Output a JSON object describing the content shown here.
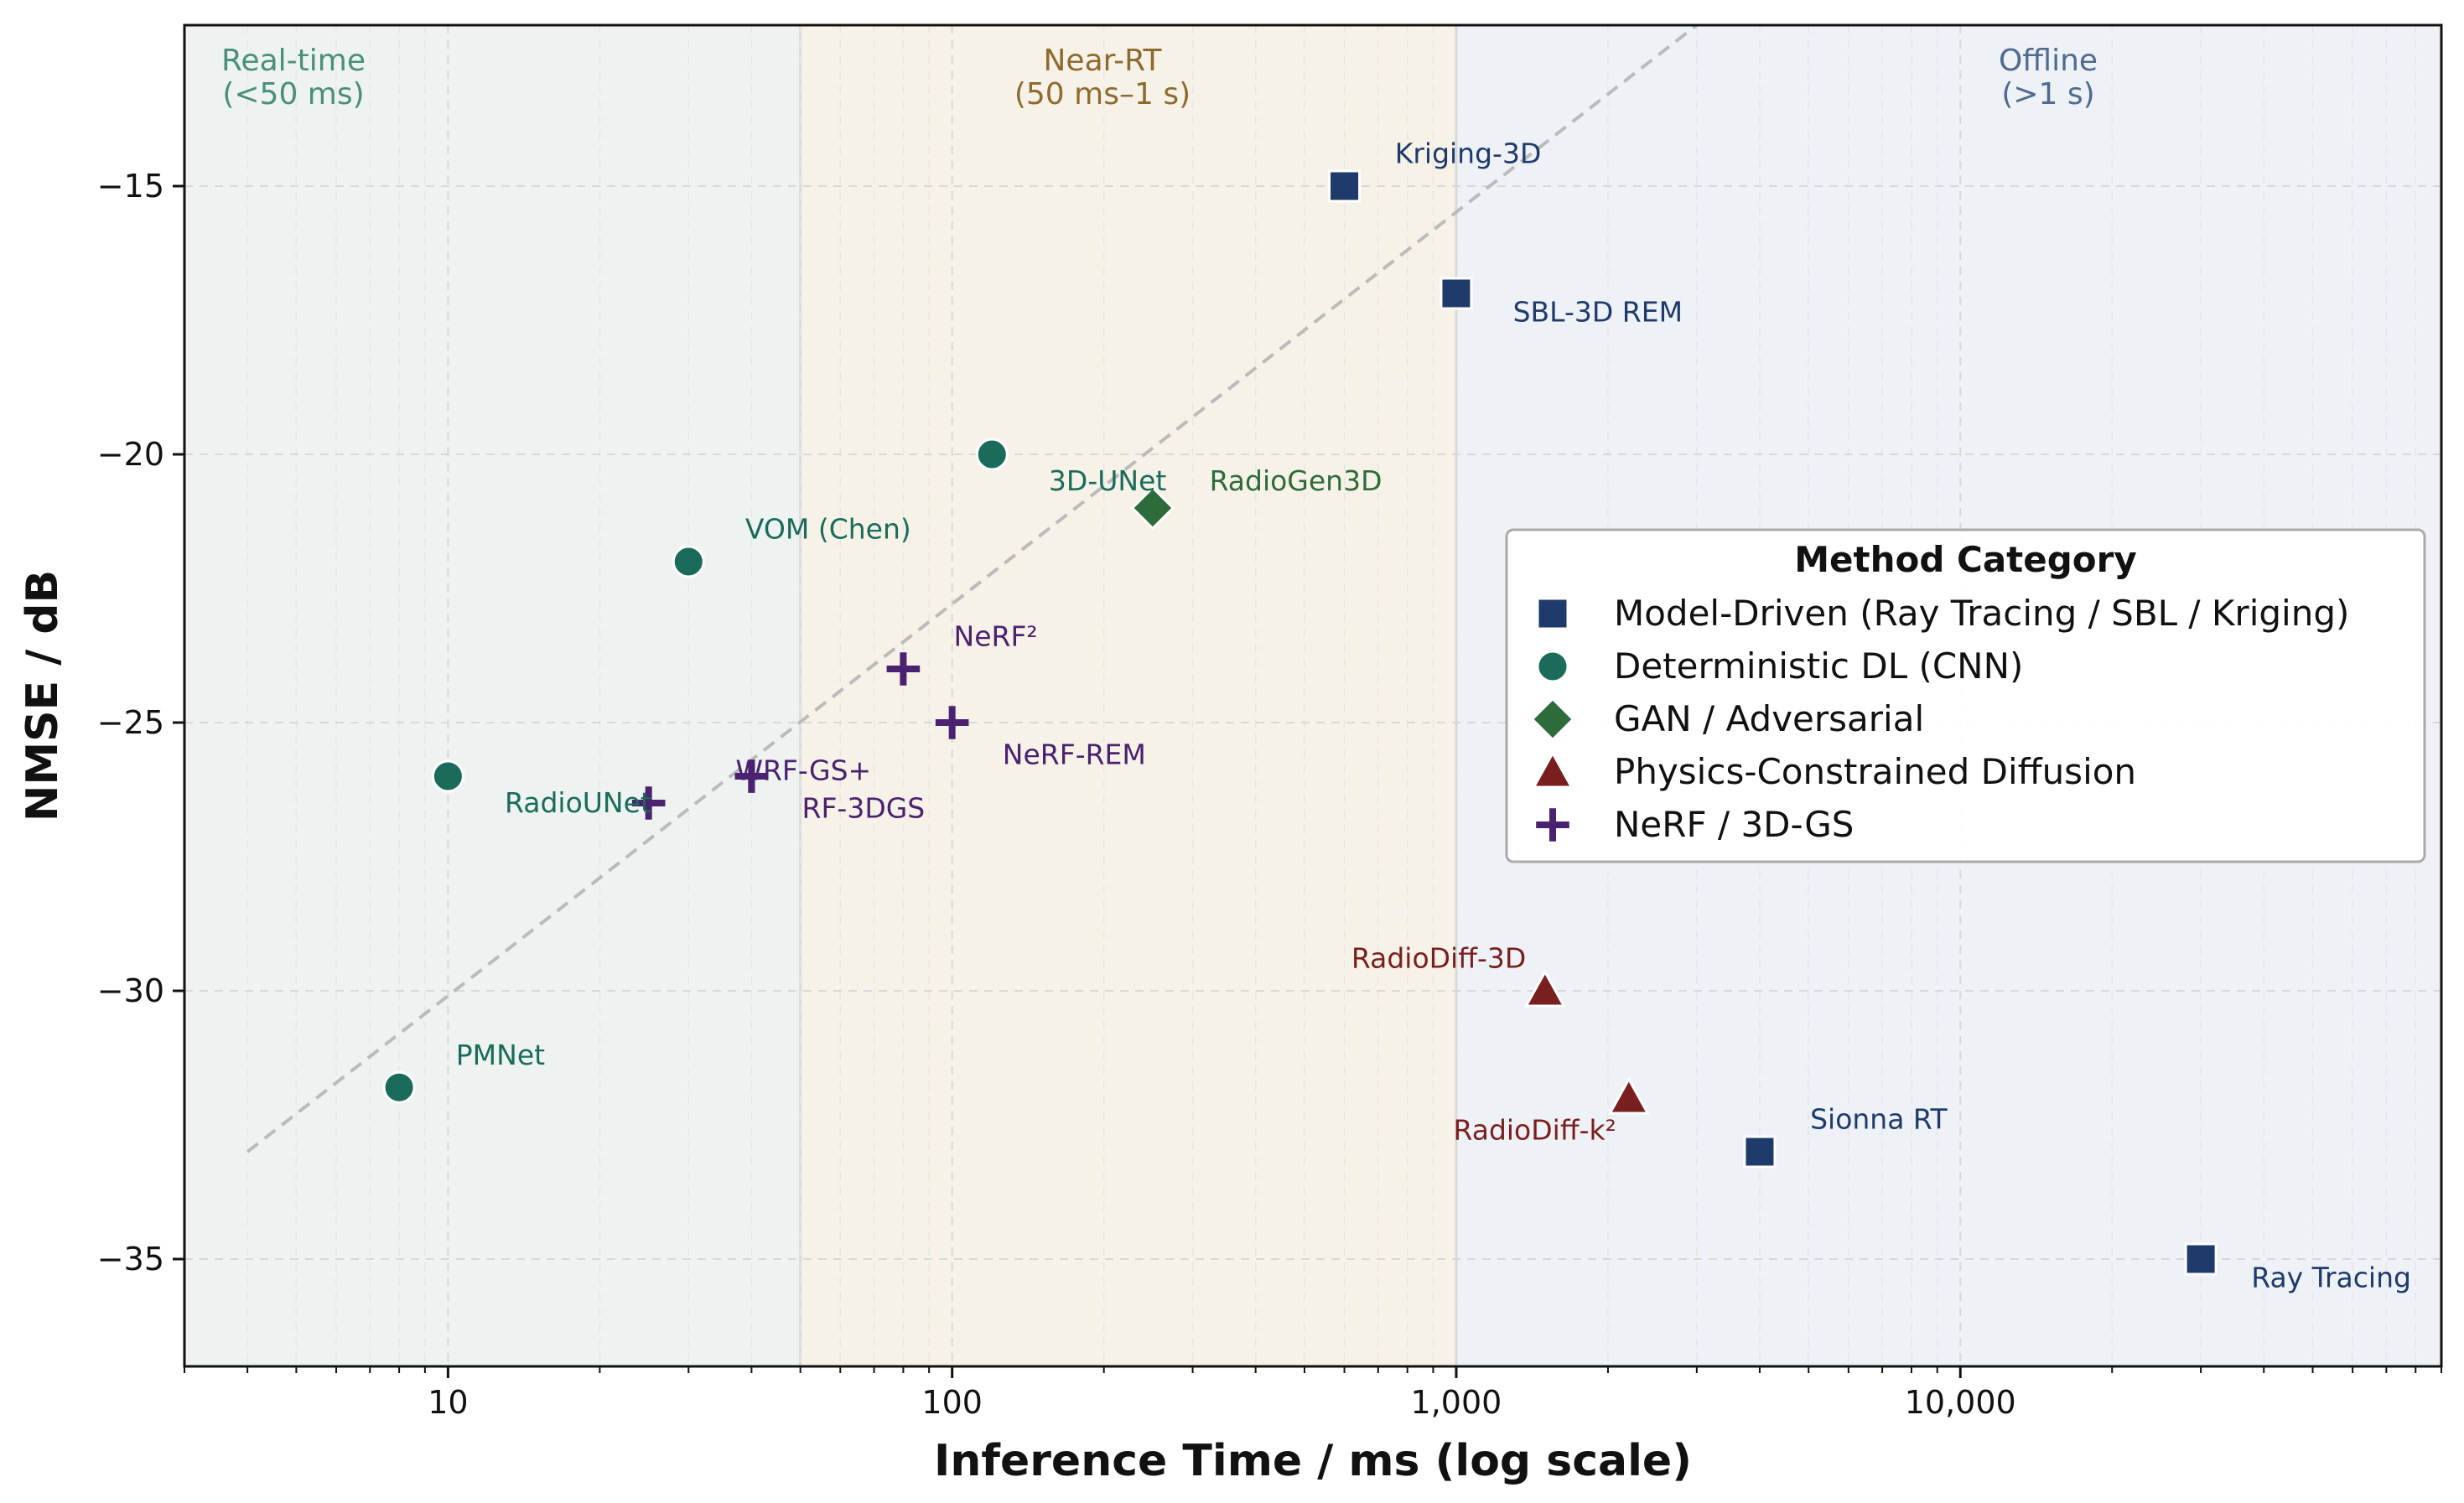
{
  "chart_data": {
    "type": "scatter",
    "xlabel": "Inference Time / ms (log scale)",
    "ylabel": "NMSE / dB",
    "xscale": "log",
    "xlim": [
      3,
      90000
    ],
    "ylim": [
      -37,
      -12
    ],
    "grid": true,
    "x_ticks": [
      {
        "value": 10,
        "label": "10"
      },
      {
        "value": 100,
        "label": "100"
      },
      {
        "value": 1000,
        "label": "1,000"
      },
      {
        "value": 10000,
        "label": "10,000"
      }
    ],
    "y_ticks": [
      {
        "value": -15,
        "label": "−15"
      },
      {
        "value": -20,
        "label": "−20"
      },
      {
        "value": -25,
        "label": "−25"
      },
      {
        "value": -30,
        "label": "−30"
      },
      {
        "value": -35,
        "label": "−35"
      }
    ],
    "regions": [
      {
        "x0": 3,
        "x1": 50,
        "label_line1": "Real-time",
        "label_line2": "(<50 ms)",
        "color": "#eef3f1",
        "text_color": "#4a8f7a"
      },
      {
        "x0": 50,
        "x1": 1000,
        "label_line1": "Near-RT",
        "label_line2": "(50 ms–1 s)",
        "color": "#f7f2e8",
        "text_color": "#8f6a2e"
      },
      {
        "x0": 1000,
        "x1": 90000,
        "label_line1": "Offline",
        "label_line2": "(>1 s)",
        "color": "#eef1f5",
        "text_color": "#4f6b8f"
      }
    ],
    "trend_line": {
      "x": [
        4,
        3000
      ],
      "y": [
        -33,
        -12
      ],
      "color": "#bbbbbb"
    },
    "categories": [
      {
        "name": "Model-Driven (Ray Tracing / SBL / Kriging)",
        "marker": "square",
        "color": "#1f3b6b",
        "text_color": "#1f3b6b"
      },
      {
        "name": "Deterministic DL (CNN)",
        "marker": "circle",
        "color": "#1a6b5a",
        "text_color": "#1a6b5a"
      },
      {
        "name": "GAN / Adversarial",
        "marker": "diamond",
        "color": "#2e6b3a",
        "text_color": "#2e6b3a"
      },
      {
        "name": "Physics-Constrained Diffusion",
        "marker": "triangle",
        "color": "#7a1f1f",
        "text_color": "#7a1f1f"
      },
      {
        "name": "NeRF / 3D-GS",
        "marker": "plus",
        "color": "#4a2270",
        "text_color": "#4a2270"
      }
    ],
    "points": [
      {
        "label": "Kriging-3D",
        "x": 600,
        "y": -15,
        "category": 0,
        "anchor": "start",
        "dx": 0.4,
        "dy": 0.6
      },
      {
        "label": "SBL-3D REM",
        "x": 1000,
        "y": -17,
        "category": 0,
        "anchor": "start",
        "dx": 0.45,
        "dy": -0.35
      },
      {
        "label": "Sionna RT",
        "x": 4000,
        "y": -33,
        "category": 0,
        "anchor": "start",
        "dx": 0.4,
        "dy": 0.6
      },
      {
        "label": "Ray Tracing",
        "x": 30000,
        "y": -35,
        "category": 0,
        "anchor": "start",
        "dx": 0.4,
        "dy": -0.35
      },
      {
        "label": "3D-UNet",
        "x": 120,
        "y": -20,
        "category": 1,
        "anchor": "start",
        "dx": 0.45,
        "dy": -0.5
      },
      {
        "label": "VOM (Chen)",
        "x": 30,
        "y": -22,
        "category": 1,
        "anchor": "start",
        "dx": 0.45,
        "dy": 0.6
      },
      {
        "label": "RadioUNet",
        "x": 10,
        "y": -26,
        "category": 1,
        "anchor": "start",
        "dx": 0.45,
        "dy": -0.5
      },
      {
        "label": "PMNet",
        "x": 8,
        "y": -31.8,
        "category": 1,
        "anchor": "start",
        "dx": 0.45,
        "dy": 0.6
      },
      {
        "label": "RadioGen3D",
        "x": 250,
        "y": -21,
        "category": 2,
        "anchor": "start",
        "dx": 0.45,
        "dy": 0.5
      },
      {
        "label": "RadioDiff-3D",
        "x": 1500,
        "y": -30,
        "category": 3,
        "anchor": "end",
        "dx": -0.15,
        "dy": 0.6
      },
      {
        "label": "RadioDiff-k²",
        "x": 2200,
        "y": -32,
        "category": 3,
        "anchor": "end",
        "dx": -0.1,
        "dy": -0.6
      },
      {
        "label": "NeRF²",
        "x": 80,
        "y": -24,
        "category": 4,
        "anchor": "start",
        "dx": 0.4,
        "dy": 0.6
      },
      {
        "label": "NeRF-REM",
        "x": 100,
        "y": -25,
        "category": 4,
        "anchor": "start",
        "dx": 0.4,
        "dy": -0.6
      },
      {
        "label": "WRF-GS+",
        "x": 40,
        "y": -26,
        "category": 4,
        "anchor": "end",
        "dx": 0.95,
        "dy": 0.1
      },
      {
        "label": "RF-3DGS",
        "x": 40,
        "y": -26,
        "category": 4,
        "anchor": "start",
        "dx": 0.4,
        "dy": -0.6
      },
      {
        "label": "",
        "x": 25,
        "y": -26.5,
        "category": 4,
        "anchor": "start",
        "dx": 0,
        "dy": 0
      }
    ],
    "legend": {
      "title": "Method Category",
      "placement": "center-right"
    }
  }
}
